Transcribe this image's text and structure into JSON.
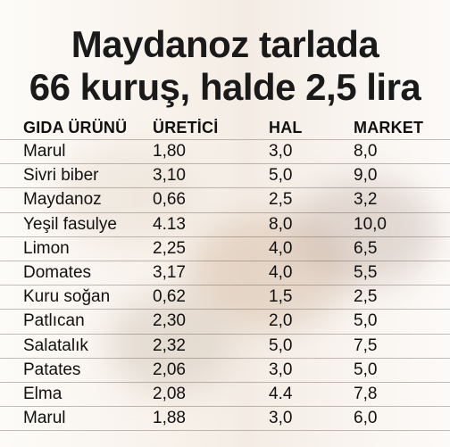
{
  "headline": {
    "line1": "Maydanoz tarlada",
    "line2": "66 kuruş, halde 2,5 lira"
  },
  "table": {
    "headers": [
      "GIDA ÜRÜNÜ",
      "ÜRETİCİ",
      "HAL",
      "MARKET"
    ],
    "rows": [
      [
        "Marul",
        "1,80",
        "3,0",
        "8,0"
      ],
      [
        "Sivri biber",
        "3,10",
        "5,0",
        "9,0"
      ],
      [
        "Maydanoz",
        "0,66",
        "2,5",
        "3,2"
      ],
      [
        "Yeşil fasulye",
        "4.13",
        "8,0",
        "10,0"
      ],
      [
        "Limon",
        "2,25",
        "4,0",
        "6,5"
      ],
      [
        "Domates",
        "3,17",
        "4,0",
        "5,5"
      ],
      [
        "Kuru soğan",
        "0,62",
        "1,5",
        "2,5"
      ],
      [
        "Patlıcan",
        "2,30",
        "2,0",
        "5,0"
      ],
      [
        "Salatalık",
        "2,32",
        "5,0",
        "7,5"
      ],
      [
        "Patates",
        "2,06",
        "3,0",
        "5,0"
      ],
      [
        "Elma",
        "2,08",
        "4.4",
        "7,8"
      ],
      [
        "Marul",
        "1,88",
        "3,0",
        "6,0"
      ]
    ]
  }
}
